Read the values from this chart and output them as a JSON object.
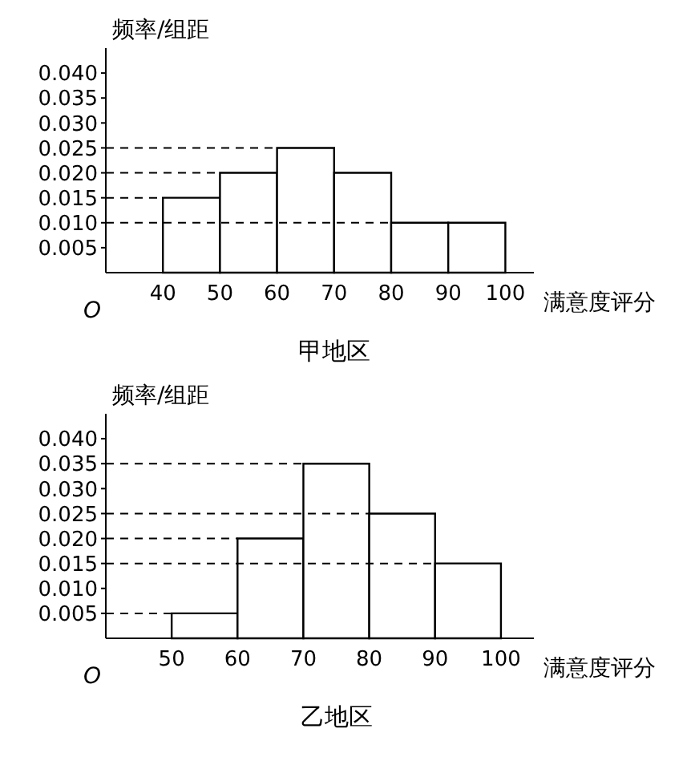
{
  "chart_data": [
    {
      "type": "histogram",
      "title": "甲地区",
      "xlabel": "满意度评分",
      "ylabel": "频率/组距",
      "annotations": [
        "O"
      ],
      "bins": [
        40,
        50,
        60,
        70,
        80,
        90,
        100
      ],
      "values": [
        0.015,
        0.02,
        0.025,
        0.02,
        0.01,
        0.01
      ],
      "color": "#ffffff",
      "xlim": [
        30,
        105
      ],
      "xticks": [
        40,
        50,
        60,
        70,
        80,
        90,
        100
      ],
      "ylim": [
        0,
        0.045
      ],
      "yticks": [
        0.005,
        {
          "value": 0.01,
          "label": "0.010"
        },
        0.015,
        {
          "value": 0.02,
          "label": "0.020"
        },
        0.025,
        {
          "value": 0.03,
          "label": "0.030"
        },
        0.035,
        {
          "value": 0.04,
          "label": "0.040"
        }
      ],
      "ref_lines": [
        {
          "axis": "y",
          "value": 0.025,
          "line_style": "dashed"
        },
        {
          "axis": "y",
          "value": 0.02,
          "line_style": "dashed"
        },
        {
          "axis": "y",
          "value": 0.015,
          "line_style": "dashed"
        },
        {
          "axis": "y",
          "value": 0.01,
          "line_style": "dashed"
        }
      ]
    },
    {
      "type": "histogram",
      "title": "乙地区",
      "xlabel": "满意度评分",
      "ylabel": "频率/组距",
      "annotations": [
        "O"
      ],
      "bins": [
        50,
        60,
        70,
        80,
        90,
        100
      ],
      "values": [
        0.005,
        0.02,
        0.035,
        0.025,
        0.015
      ],
      "color": "#ffffff",
      "xlim": [
        40,
        105
      ],
      "xticks": [
        50,
        60,
        70,
        80,
        90,
        100
      ],
      "ylim": [
        0,
        0.045
      ],
      "yticks": [
        0.005,
        {
          "value": 0.01,
          "label": "0.010"
        },
        0.015,
        {
          "value": 0.02,
          "label": "0.020"
        },
        0.025,
        {
          "value": 0.03,
          "label": "0.030"
        },
        0.035,
        {
          "value": 0.04,
          "label": "0.040"
        }
      ],
      "ref_lines": [
        {
          "axis": "y",
          "value": 0.035,
          "line_style": "dashed"
        },
        {
          "axis": "y",
          "value": 0.025,
          "line_style": "dashed"
        },
        {
          "axis": "y",
          "value": 0.02,
          "line_style": "dashed"
        },
        {
          "axis": "y",
          "value": 0.015,
          "line_style": "dashed"
        },
        {
          "axis": "y",
          "value": 0.005,
          "line_style": "dashed"
        }
      ]
    }
  ]
}
